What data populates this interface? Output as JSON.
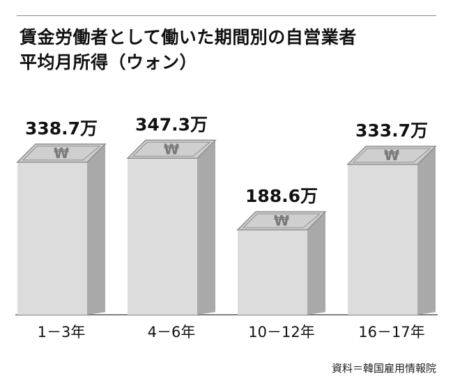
{
  "title": {
    "line1": "賃金労働者として働いた期間別の自営業者",
    "line2": "平均月所得（ウォン）"
  },
  "source": "資料＝韓国雇用情報院",
  "colors": {
    "bar_front": "#dcdcdc",
    "bar_side": "#a9a9a9",
    "bill_fill": "#cfcfcf",
    "bill_stroke": "#8f8f8f",
    "axis": "#555555",
    "text": "#111111"
  },
  "icon": "won-banknote-icon",
  "chart_data": {
    "type": "bar",
    "categories": [
      "1－3年",
      "4－6年",
      "10－12年",
      "16－17年"
    ],
    "values": [
      338.7,
      347.3,
      188.6,
      333.7
    ],
    "data_labels": [
      "338.7万",
      "347.3万",
      "188.6万",
      "333.7万"
    ],
    "title": "賃金労働者として働いた期間別の自営業者平均月所得（ウォン）",
    "unit": "万",
    "ylim": [
      0,
      400
    ],
    "grid": false,
    "legend": "none"
  }
}
